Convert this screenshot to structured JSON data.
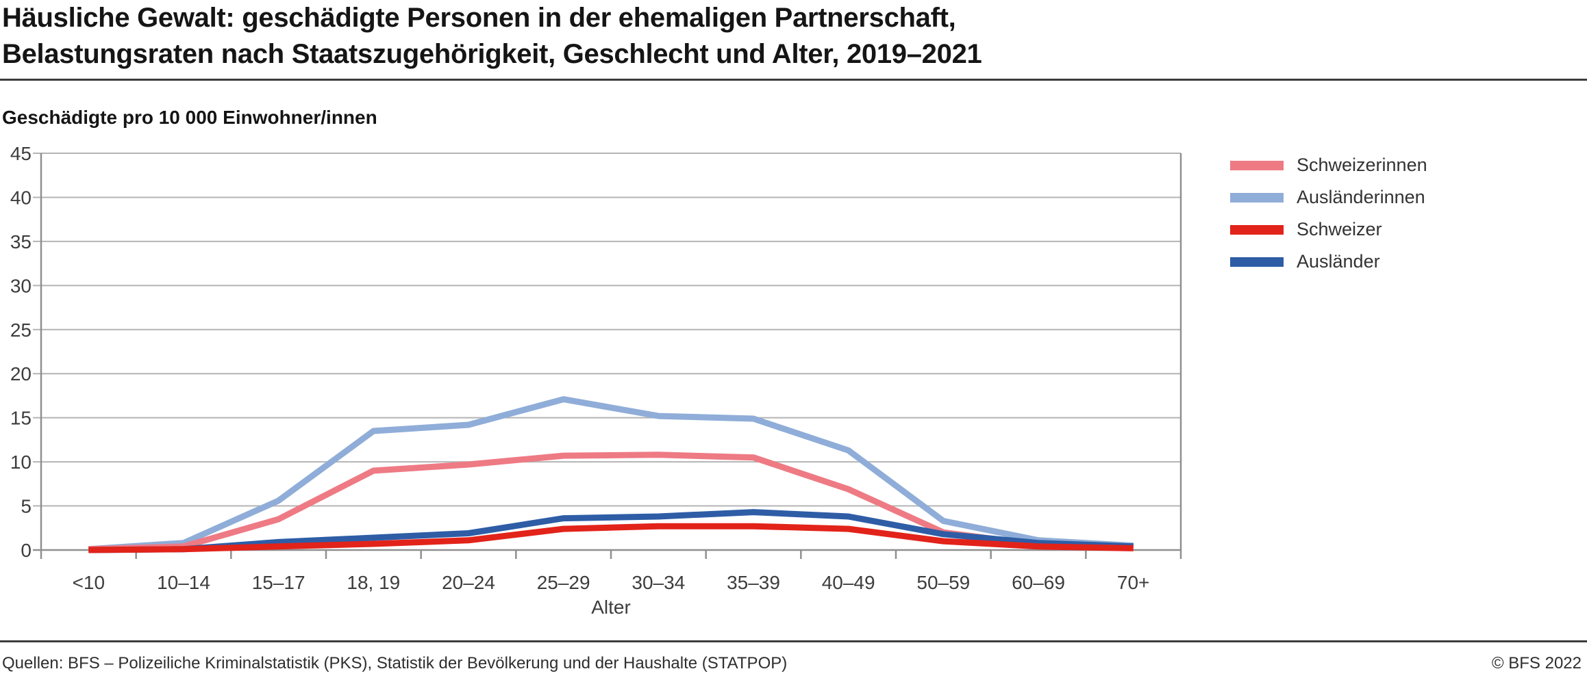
{
  "header": {
    "title_line1": "Häusliche Gewalt: geschädigte Personen in der ehemaligen Partnerschaft,",
    "title_line2": "Belastungsraten nach Staatszugehörigkeit, Geschlecht und Alter, 2019–2021"
  },
  "subtitle": "Geschädigte pro 10 000 Einwohner/innen",
  "chart_data": {
    "type": "line",
    "title": "Häusliche Gewalt: geschädigte Personen in der ehemaligen Partnerschaft, Belastungsraten nach Staatszugehörigkeit, Geschlecht und Alter, 2019–2021",
    "subtitle": "Geschädigte pro 10 000 Einwohner/innen",
    "xlabel": "Alter",
    "ylabel": "Geschädigte pro 10 000 Einwohner/innen",
    "ylim": [
      0,
      45
    ],
    "ytick_step": 5,
    "yticks": [
      0,
      5,
      10,
      15,
      20,
      25,
      30,
      35,
      40,
      45
    ],
    "grid": true,
    "legend_position": "right",
    "categories": [
      "<10",
      "10–14",
      "15–17",
      "18, 19",
      "20–24",
      "25–29",
      "30–34",
      "35–39",
      "40–49",
      "50–59",
      "60–69",
      "70+"
    ],
    "series": [
      {
        "name": "Schweizerinnen",
        "color": "#ee7a84",
        "values": [
          0.1,
          0.4,
          3.5,
          9.0,
          9.7,
          10.7,
          10.8,
          10.5,
          6.9,
          2.0,
          0.6,
          0.3
        ]
      },
      {
        "name": "Ausländerinnen",
        "color": "#8fadd8",
        "values": [
          0.1,
          0.8,
          5.6,
          13.5,
          14.2,
          17.1,
          15.2,
          14.9,
          11.3,
          3.3,
          1.1,
          0.5
        ]
      },
      {
        "name": "Schweizer",
        "color": "#e2231a",
        "values": [
          0.0,
          0.1,
          0.4,
          0.7,
          1.1,
          2.4,
          2.7,
          2.7,
          2.4,
          1.0,
          0.4,
          0.2
        ]
      },
      {
        "name": "Ausländer",
        "color": "#2e5da6",
        "values": [
          0.0,
          0.1,
          0.9,
          1.4,
          1.9,
          3.6,
          3.8,
          4.3,
          3.8,
          1.8,
          0.8,
          0.4
        ]
      }
    ],
    "colors": {
      "grid": "#b4b4b4",
      "axis": "#8f8f8f",
      "axis_text": "#3d3d3d"
    }
  },
  "footer": {
    "sources": "Quellen: BFS – Polizeiliche Kriminalstatistik (PKS), Statistik der Bevölkerung und der Haushalte (STATPOP)",
    "copyright": "© BFS 2022"
  }
}
